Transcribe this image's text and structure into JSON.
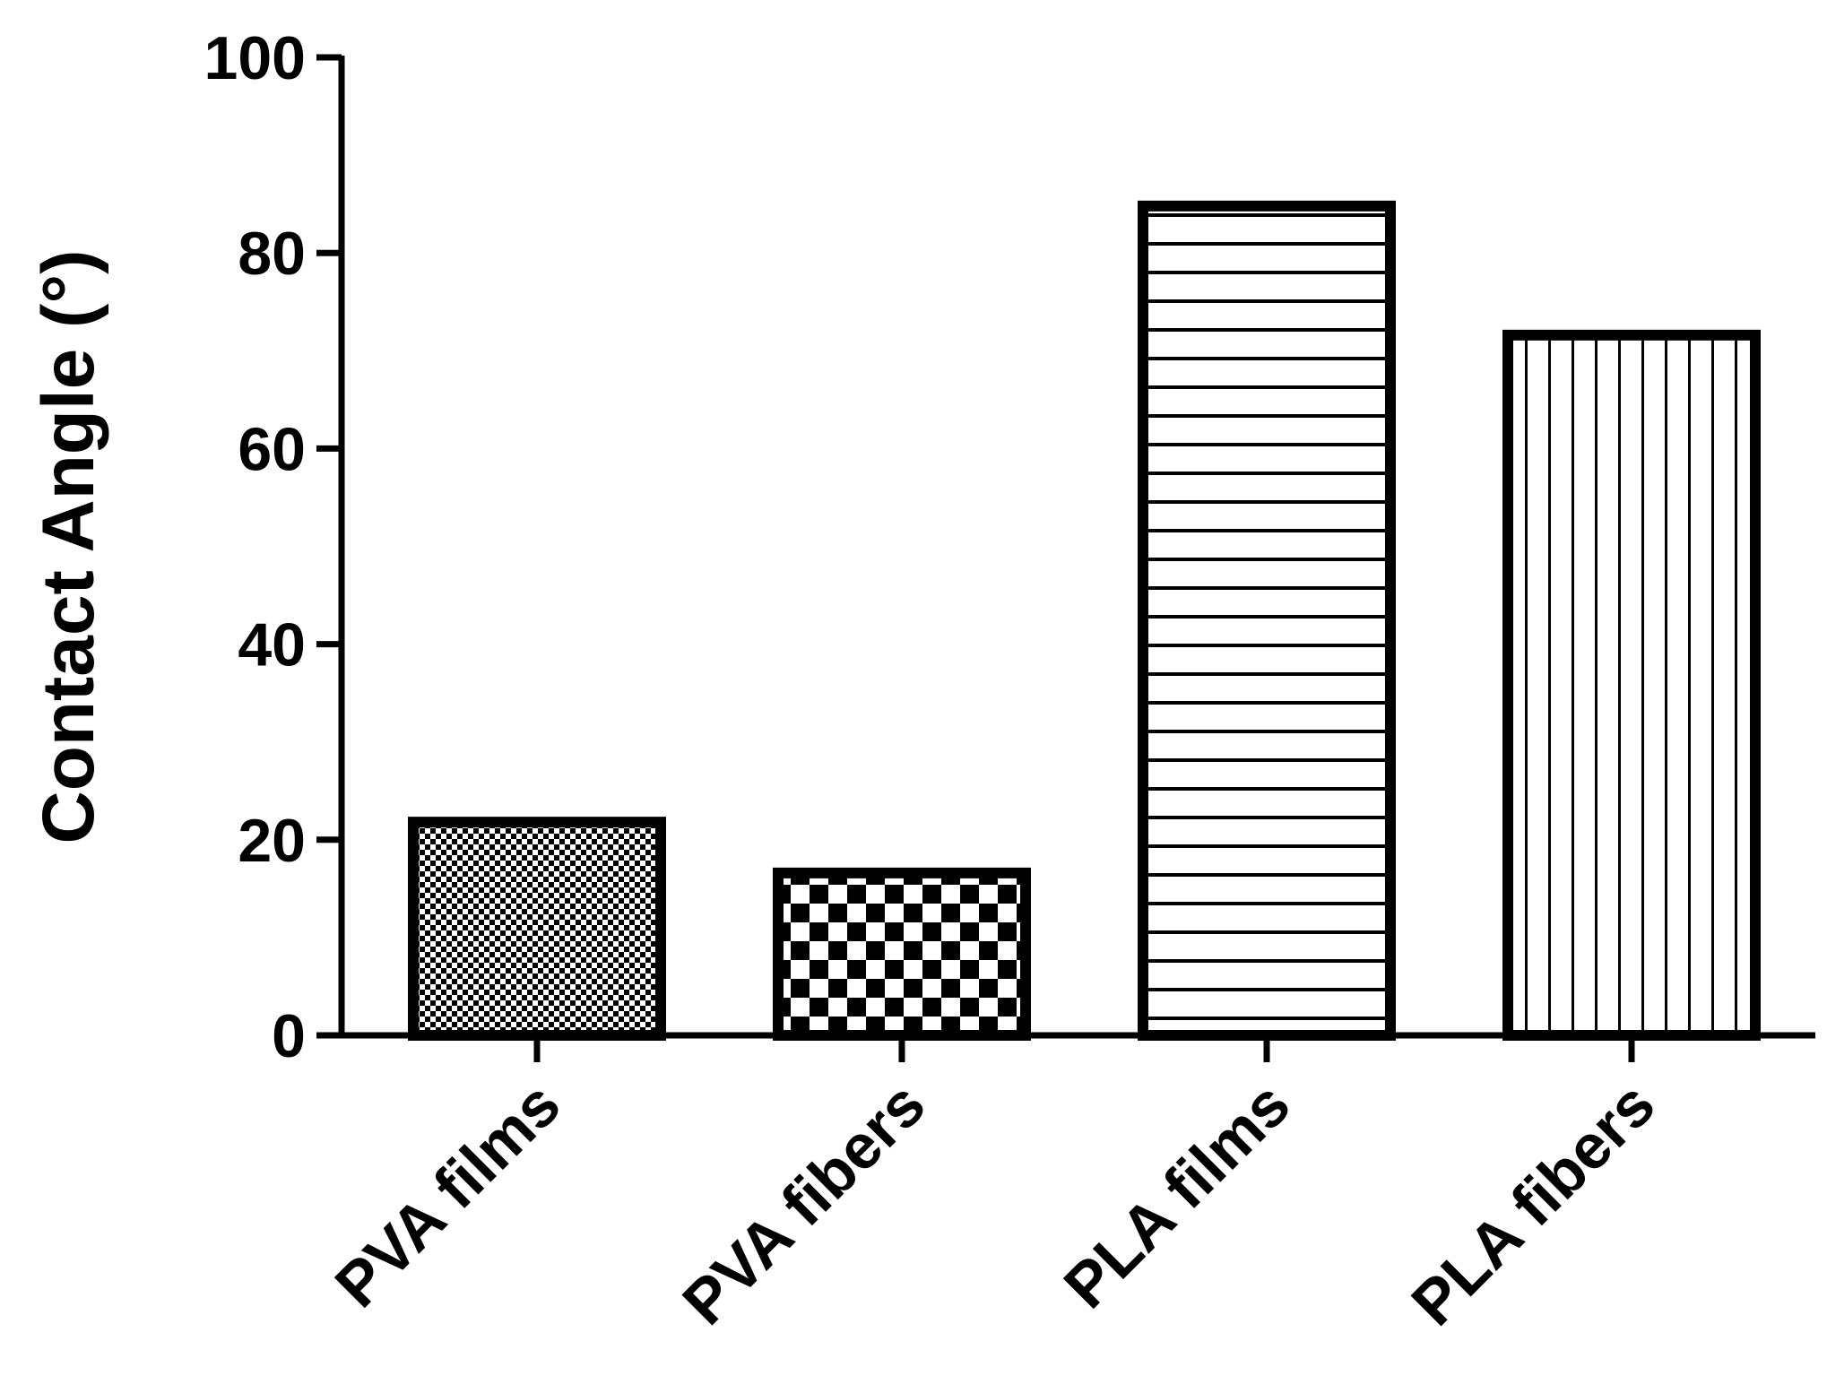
{
  "chart_data": {
    "type": "bar",
    "title": "",
    "xlabel": "",
    "ylabel": "Contact Angle (°)",
    "categories": [
      "PVA films",
      "PVA fibers",
      "PLA films",
      "PLA fibers"
    ],
    "values": [
      21.8,
      16.6,
      84.8,
      71.6
    ],
    "patterns": [
      "fine-checker",
      "coarse-checker",
      "horizontal-lines",
      "vertical-lines"
    ],
    "ylim": [
      0,
      100
    ],
    "yticks": [
      "0",
      "20",
      "40",
      "60",
      "80",
      "100"
    ],
    "grid": false,
    "legend": "none",
    "colors": {
      "bar_outline": "#000000",
      "fill": "#ffffff",
      "pattern": "#000000"
    }
  }
}
